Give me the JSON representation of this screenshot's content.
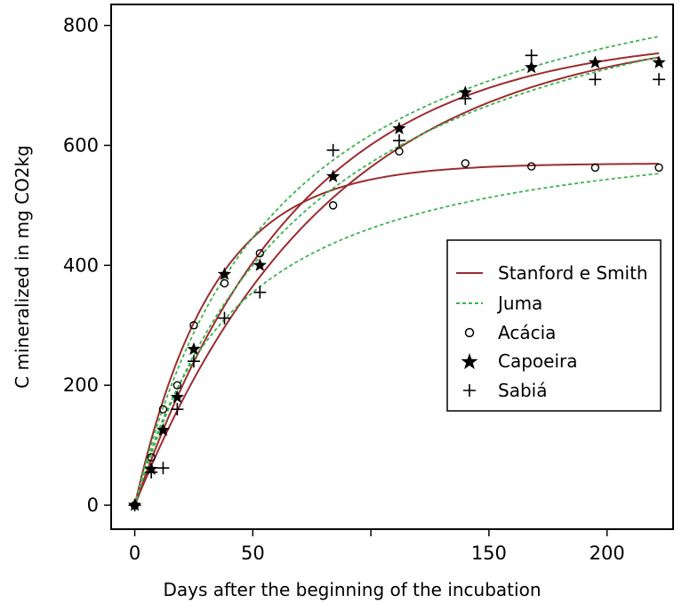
{
  "chart_data": {
    "type": "scatter",
    "xlabel": "Days after the beginning of the incubation",
    "ylabel": "C mineralized in mg CO2kg",
    "xlim": [
      -10,
      228
    ],
    "ylim": [
      -40,
      835
    ],
    "xticks": [
      0,
      50,
      100,
      150,
      200
    ],
    "xtick_labels": [
      "0",
      "50",
      "",
      "150",
      "200"
    ],
    "yticks": [
      0,
      200,
      400,
      600,
      800
    ],
    "ytick_labels": [
      "0",
      "200",
      "400",
      "600",
      "800"
    ],
    "legend_position": "right",
    "colors": {
      "stanford": "#9b2d30",
      "juma": "#3cb450",
      "points": "#000000"
    },
    "series": [
      {
        "name": "Acácia",
        "marker": "circle",
        "points": [
          [
            0,
            0
          ],
          [
            7,
            80
          ],
          [
            12,
            160
          ],
          [
            18,
            200
          ],
          [
            25,
            300
          ],
          [
            38,
            370
          ],
          [
            53,
            420
          ],
          [
            84,
            500
          ],
          [
            112,
            590
          ],
          [
            140,
            570
          ],
          [
            168,
            565
          ],
          [
            195,
            563
          ],
          [
            222,
            563
          ]
        ]
      },
      {
        "name": "Capoeira",
        "marker": "star",
        "points": [
          [
            0,
            0
          ],
          [
            7,
            60
          ],
          [
            12,
            125
          ],
          [
            18,
            180
          ],
          [
            25,
            260
          ],
          [
            38,
            385
          ],
          [
            53,
            400
          ],
          [
            84,
            548
          ],
          [
            112,
            628
          ],
          [
            140,
            688
          ],
          [
            168,
            730
          ],
          [
            195,
            738
          ],
          [
            222,
            738
          ]
        ]
      },
      {
        "name": "Sabiá",
        "marker": "plus",
        "points": [
          [
            0,
            0
          ],
          [
            7,
            55
          ],
          [
            12,
            62
          ],
          [
            18,
            160
          ],
          [
            25,
            240
          ],
          [
            38,
            312
          ],
          [
            53,
            355
          ],
          [
            84,
            592
          ],
          [
            112,
            608
          ],
          [
            140,
            678
          ],
          [
            168,
            750
          ],
          [
            195,
            710
          ],
          [
            222,
            710
          ]
        ]
      }
    ],
    "fits": [
      {
        "name": "Stanford e Smith",
        "style": "solid",
        "target": "Acácia",
        "a": 570,
        "k": 0.0305
      },
      {
        "name": "Stanford e Smith",
        "style": "solid",
        "target": "Capoeira",
        "a": 785,
        "k": 0.0145
      },
      {
        "name": "Stanford e Smith",
        "style": "solid",
        "target": "Sabiá",
        "a": 800,
        "k": 0.0122
      },
      {
        "name": "Juma",
        "style": "dashed",
        "target": "Acácia",
        "a": 660,
        "k": 43
      },
      {
        "name": "Juma",
        "style": "dashed",
        "target": "Capoeira",
        "a": 1000,
        "k": 75
      },
      {
        "name": "Juma",
        "style": "dashed",
        "target": "Sabiá",
        "a": 1000,
        "k": 62
      }
    ],
    "legend": [
      "Stanford e Smith",
      "Juma",
      "Acácia",
      "Capoeira",
      "Sabiá"
    ]
  }
}
